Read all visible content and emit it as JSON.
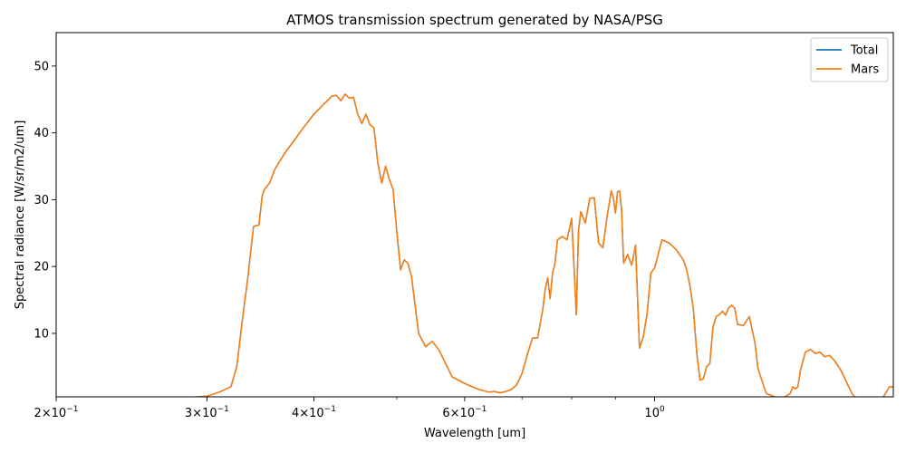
{
  "chart_data": {
    "type": "line",
    "title": "ATMOS transmission spectrum generated by NASA/PSG",
    "xlabel": "Wavelength [um]",
    "ylabel": "Spectral radiance [W/sr/m2/um]",
    "x_scale": "log",
    "xlim": [
      0.2,
      1.9
    ],
    "ylim": [
      0.5,
      55
    ],
    "grid": false,
    "legend_position": "top-right",
    "x_ticks": [
      {
        "value": 0.2,
        "base": "2×10",
        "exp": "−1"
      },
      {
        "value": 0.3,
        "base": "3×10",
        "exp": "−1"
      },
      {
        "value": 0.4,
        "base": "4×10",
        "exp": "−1"
      },
      {
        "value": 0.6,
        "base": "6×10",
        "exp": "−1"
      },
      {
        "value": 1.0,
        "base": "10",
        "exp": "0"
      }
    ],
    "y_ticks": [
      10,
      20,
      30,
      40,
      50
    ],
    "series": [
      {
        "name": "Total",
        "color": "#1f77b4",
        "x": [
          0.2,
          0.25,
          0.28,
          0.3,
          0.31,
          0.32,
          0.325,
          0.33,
          0.335,
          0.34,
          0.345,
          0.348,
          0.35,
          0.355,
          0.36,
          0.365,
          0.37,
          0.38,
          0.39,
          0.4,
          0.41,
          0.42,
          0.425,
          0.43,
          0.435,
          0.44,
          0.445,
          0.45,
          0.455,
          0.46,
          0.465,
          0.47,
          0.475,
          0.48,
          0.485,
          0.49,
          0.495,
          0.5,
          0.505,
          0.51,
          0.515,
          0.52,
          0.53,
          0.54,
          0.55,
          0.56,
          0.58,
          0.6,
          0.62,
          0.64,
          0.65,
          0.66,
          0.67,
          0.68,
          0.69,
          0.7,
          0.71,
          0.72,
          0.73,
          0.74,
          0.745,
          0.75,
          0.755,
          0.76,
          0.765,
          0.77,
          0.78,
          0.79,
          0.8,
          0.81,
          0.815,
          0.82,
          0.83,
          0.84,
          0.85,
          0.86,
          0.87,
          0.88,
          0.89,
          0.895,
          0.9,
          0.905,
          0.91,
          0.915,
          0.92,
          0.93,
          0.94,
          0.95,
          0.96,
          0.97,
          0.98,
          0.99,
          1.0,
          1.02,
          1.04,
          1.06,
          1.08,
          1.09,
          1.1,
          1.11,
          1.12,
          1.13,
          1.14,
          1.15,
          1.16,
          1.17,
          1.18,
          1.19,
          1.2,
          1.21,
          1.22,
          1.23,
          1.24,
          1.25,
          1.27,
          1.29,
          1.31,
          1.32,
          1.35,
          1.4,
          1.42,
          1.44,
          1.45,
          1.46,
          1.47,
          1.48,
          1.5,
          1.52,
          1.54,
          1.56,
          1.58,
          1.6,
          1.62,
          1.65,
          1.7,
          1.72,
          1.75,
          1.8,
          1.85,
          1.87,
          1.88,
          1.9
        ],
        "y": [
          0.1,
          0.2,
          0.3,
          0.6,
          1.2,
          2.0,
          5.0,
          12.0,
          18.5,
          26.0,
          26.2,
          30.5,
          31.5,
          32.5,
          34.5,
          35.8,
          37.0,
          39.0,
          41.0,
          42.8,
          44.2,
          45.5,
          45.6,
          44.8,
          45.8,
          45.2,
          45.3,
          42.8,
          41.4,
          42.8,
          41.2,
          40.8,
          35.5,
          32.5,
          35.0,
          33.0,
          31.5,
          25.0,
          19.5,
          21.0,
          20.5,
          18.5,
          10.0,
          8.0,
          8.8,
          7.5,
          3.5,
          2.5,
          1.7,
          1.2,
          1.3,
          1.1,
          1.3,
          1.6,
          2.3,
          4.0,
          6.8,
          9.3,
          9.3,
          13.5,
          16.5,
          18.3,
          15.2,
          19.0,
          20.5,
          24.0,
          24.5,
          24.0,
          27.2,
          12.8,
          25.5,
          28.2,
          26.5,
          30.2,
          30.3,
          23.5,
          22.8,
          27.5,
          31.3,
          30.3,
          28.0,
          31.2,
          31.3,
          28.5,
          20.5,
          21.8,
          20.2,
          23.2,
          7.8,
          9.5,
          13.0,
          19.0,
          19.8,
          24.0,
          23.5,
          22.5,
          21.0,
          19.5,
          17.0,
          13.5,
          7.0,
          3.0,
          3.2,
          5.0,
          5.5,
          11.0,
          12.5,
          12.8,
          13.3,
          12.7,
          13.8,
          14.2,
          13.8,
          11.3,
          11.2,
          12.5,
          8.5,
          4.8,
          1.0,
          0.2,
          0.5,
          1.0,
          2.0,
          1.7,
          2.0,
          4.5,
          7.2,
          7.6,
          7.0,
          7.2,
          6.5,
          6.7,
          6.0,
          4.5,
          1.0,
          0.2,
          0.3,
          0.3,
          0.5,
          1.5,
          2.0,
          2.0
        ]
      },
      {
        "name": "Mars",
        "color": "#ff7f0e",
        "x": [
          0.2,
          0.25,
          0.28,
          0.3,
          0.31,
          0.32,
          0.325,
          0.33,
          0.335,
          0.34,
          0.345,
          0.348,
          0.35,
          0.355,
          0.36,
          0.365,
          0.37,
          0.38,
          0.39,
          0.4,
          0.41,
          0.42,
          0.425,
          0.43,
          0.435,
          0.44,
          0.445,
          0.45,
          0.455,
          0.46,
          0.465,
          0.47,
          0.475,
          0.48,
          0.485,
          0.49,
          0.495,
          0.5,
          0.505,
          0.51,
          0.515,
          0.52,
          0.53,
          0.54,
          0.55,
          0.56,
          0.58,
          0.6,
          0.62,
          0.64,
          0.65,
          0.66,
          0.67,
          0.68,
          0.69,
          0.7,
          0.71,
          0.72,
          0.73,
          0.74,
          0.745,
          0.75,
          0.755,
          0.76,
          0.765,
          0.77,
          0.78,
          0.79,
          0.8,
          0.81,
          0.815,
          0.82,
          0.83,
          0.84,
          0.85,
          0.86,
          0.87,
          0.88,
          0.89,
          0.895,
          0.9,
          0.905,
          0.91,
          0.915,
          0.92,
          0.93,
          0.94,
          0.95,
          0.96,
          0.97,
          0.98,
          0.99,
          1.0,
          1.02,
          1.04,
          1.06,
          1.08,
          1.09,
          1.1,
          1.11,
          1.12,
          1.13,
          1.14,
          1.15,
          1.16,
          1.17,
          1.18,
          1.19,
          1.2,
          1.21,
          1.22,
          1.23,
          1.24,
          1.25,
          1.27,
          1.29,
          1.31,
          1.32,
          1.35,
          1.4,
          1.42,
          1.44,
          1.45,
          1.46,
          1.47,
          1.48,
          1.5,
          1.52,
          1.54,
          1.56,
          1.58,
          1.6,
          1.62,
          1.65,
          1.7,
          1.72,
          1.75,
          1.8,
          1.85,
          1.87,
          1.88,
          1.9
        ],
        "y": [
          0.1,
          0.2,
          0.3,
          0.6,
          1.2,
          2.0,
          5.0,
          12.0,
          18.5,
          26.0,
          26.2,
          30.5,
          31.5,
          32.5,
          34.5,
          35.8,
          37.0,
          39.0,
          41.0,
          42.8,
          44.2,
          45.5,
          45.6,
          44.8,
          45.8,
          45.2,
          45.3,
          42.8,
          41.4,
          42.8,
          41.2,
          40.8,
          35.5,
          32.5,
          35.0,
          33.0,
          31.5,
          25.0,
          19.5,
          21.0,
          20.5,
          18.5,
          10.0,
          8.0,
          8.8,
          7.5,
          3.5,
          2.5,
          1.7,
          1.2,
          1.3,
          1.1,
          1.3,
          1.6,
          2.3,
          4.0,
          6.8,
          9.3,
          9.3,
          13.5,
          16.5,
          18.3,
          15.2,
          19.0,
          20.5,
          24.0,
          24.5,
          24.0,
          27.2,
          12.8,
          25.5,
          28.2,
          26.5,
          30.2,
          30.3,
          23.5,
          22.8,
          27.5,
          31.3,
          30.3,
          28.0,
          31.2,
          31.3,
          28.5,
          20.5,
          21.8,
          20.2,
          23.2,
          7.8,
          9.5,
          13.0,
          19.0,
          19.8,
          24.0,
          23.5,
          22.5,
          21.0,
          19.5,
          17.0,
          13.5,
          7.0,
          3.0,
          3.2,
          5.0,
          5.5,
          11.0,
          12.5,
          12.8,
          13.3,
          12.7,
          13.8,
          14.2,
          13.8,
          11.3,
          11.2,
          12.5,
          8.5,
          4.8,
          1.0,
          0.2,
          0.5,
          1.0,
          2.0,
          1.7,
          2.0,
          4.5,
          7.2,
          7.6,
          7.0,
          7.2,
          6.5,
          6.7,
          6.0,
          4.5,
          1.0,
          0.2,
          0.3,
          0.3,
          0.5,
          1.5,
          2.0,
          2.0
        ]
      }
    ]
  }
}
